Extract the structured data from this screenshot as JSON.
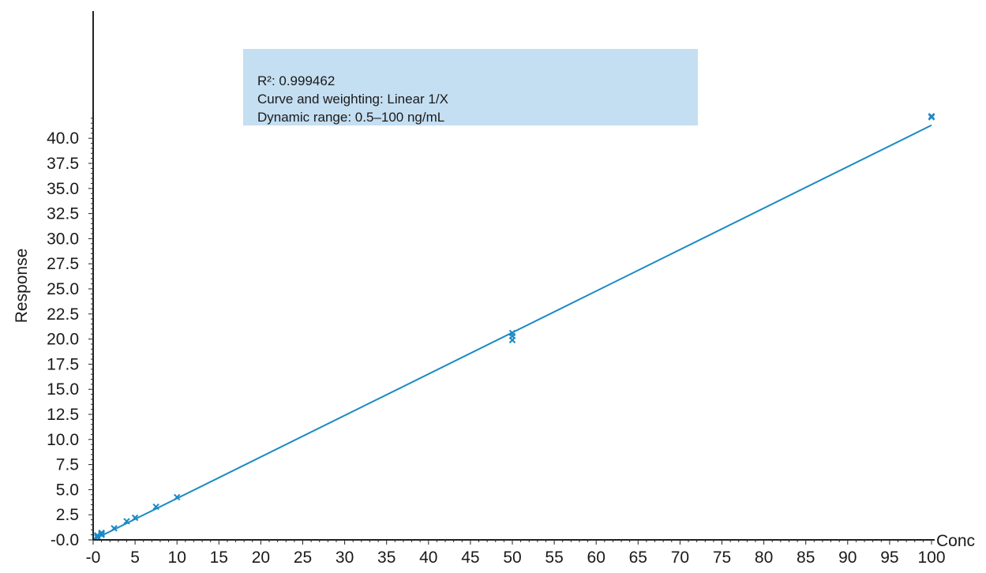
{
  "chart_data": {
    "type": "scatter",
    "xlabel": "Conc",
    "ylabel": "Response",
    "xlim": [
      0,
      100
    ],
    "ylim": [
      0,
      42
    ],
    "x_ticks": [
      "-0",
      "5",
      "10",
      "15",
      "20",
      "25",
      "30",
      "35",
      "40",
      "45",
      "50",
      "55",
      "60",
      "65",
      "70",
      "75",
      "80",
      "85",
      "90",
      "95",
      "100"
    ],
    "y_ticks": [
      "-0.0",
      "2.5",
      "5.0",
      "7.5",
      "10.0",
      "12.5",
      "15.0",
      "17.5",
      "20.0",
      "22.5",
      "25.0",
      "27.5",
      "30.0",
      "32.5",
      "35.0",
      "37.5",
      "40.0"
    ],
    "grid": false,
    "series": [
      {
        "marker": "x",
        "color": "#1b8ac4",
        "x": [
          0.5,
          0.5,
          0.5,
          1.0,
          1.0,
          1.0,
          2.5,
          4.0,
          5.0,
          7.5,
          10.0,
          50.0,
          50.0,
          50.0,
          100.0,
          100.0
        ],
        "y": [
          0.25,
          0.35,
          0.45,
          0.5,
          0.6,
          0.7,
          1.15,
          1.85,
          2.2,
          3.3,
          4.25,
          19.9,
          20.3,
          20.6,
          42.1,
          42.2
        ]
      }
    ],
    "fit_line": {
      "x": [
        0,
        100
      ],
      "y": [
        0.0,
        41.3
      ],
      "color": "#1b8ac4"
    },
    "annotation": {
      "lines": [
        "R²: 0.999462",
        "Curve and weighting: Linear 1/X",
        "Dynamic range: 0.5–100 ng/mL"
      ],
      "background": "#c5dff2"
    },
    "colors": {
      "series": "#1b8ac4",
      "axis": "#222222",
      "annotation_bg": "#c5dff2"
    }
  }
}
